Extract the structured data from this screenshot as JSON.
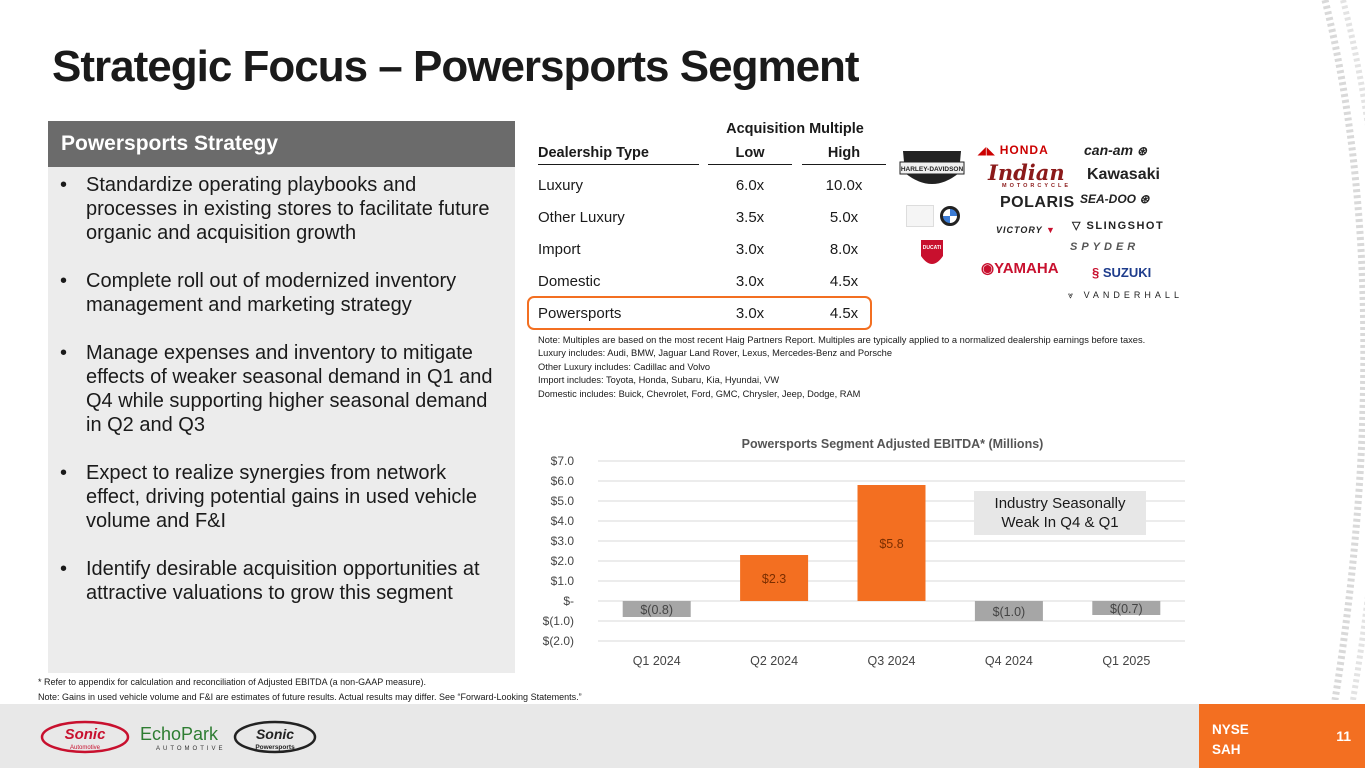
{
  "title": "Strategic Focus – Powersports Segment",
  "strategy": {
    "heading": "Powersports Strategy",
    "bullets": [
      "Standardize operating playbooks and processes in existing stores to facilitate future organic and acquisition growth",
      "Complete roll out of modernized inventory management and marketing strategy",
      "Manage expenses and inventory to mitigate effects of weaker seasonal demand in Q1 and Q4 while supporting higher seasonal demand in Q2 and Q3",
      "Expect to realize synergies from network effect, driving potential gains in used vehicle volume and F&I",
      "Identify desirable acquisition opportunities at attractive valuations to grow this segment"
    ]
  },
  "multiples": {
    "super_header": "Acquisition Multiple",
    "headers": {
      "type": "Dealership Type",
      "low": "Low",
      "high": "High"
    },
    "rows": [
      {
        "type": "Luxury",
        "low": "6.0x",
        "high": "10.0x"
      },
      {
        "type": "Other Luxury",
        "low": "3.5x",
        "high": "5.0x"
      },
      {
        "type": "Import",
        "low": "3.0x",
        "high": "8.0x"
      },
      {
        "type": "Domestic",
        "low": "3.0x",
        "high": "4.5x"
      },
      {
        "type": "Powersports",
        "low": "3.0x",
        "high": "4.5x"
      }
    ],
    "highlight_color": "#f36f21"
  },
  "brands": {
    "harley": "HARLEY-DAVIDSON",
    "honda": "HONDA",
    "indian": "Indian",
    "indian_sub": "MOTORCYCLE",
    "polaris": "POLARIS",
    "victory": "VICTORY",
    "yamaha": "YAMAHA",
    "canam": "can-am",
    "kawasaki": "Kawasaki",
    "seadoo": "SEA-DOO",
    "slingshot": "SLINGSHOT",
    "spyder": "SPYDER",
    "suzuki": "SUZUKI",
    "vanderhall": "VANDERHALL",
    "ducati": "DUCATI"
  },
  "notes": [
    "Note: Multiples are based on the most recent Haig Partners Report. Multiples are typically applied to a normalized dealership earnings before taxes.",
    "Luxury includes: Audi, BMW, Jaguar Land Rover, Lexus, Mercedes-Benz and Porsche",
    "Other Luxury includes: Cadillac and Volvo",
    "Import includes: Toyota, Honda, Subaru, Kia, Hyundai, VW",
    "Domestic includes: Buick, Chevrolet, Ford, GMC, Chrysler, Jeep, Dodge, RAM"
  ],
  "chart_data": {
    "type": "bar",
    "title": "Powersports Segment Adjusted EBITDA* (Millions)",
    "categories": [
      "Q1 2024",
      "Q2 2024",
      "Q3 2024",
      "Q4 2024",
      "Q1 2025"
    ],
    "values": [
      -0.8,
      2.3,
      5.8,
      -1.0,
      -0.7
    ],
    "data_labels": [
      "$(0.8)",
      "$2.3",
      "$5.8",
      "$(1.0)",
      "$(0.7)"
    ],
    "ylim": [
      -2.0,
      7.0
    ],
    "y_ticks": [
      7.0,
      6.0,
      5.0,
      4.0,
      3.0,
      2.0,
      1.0,
      0.0,
      -1.0,
      -2.0
    ],
    "y_tick_labels": [
      "$7.0",
      "$6.0",
      "$5.0",
      "$4.0",
      "$3.0",
      "$2.0",
      "$1.0",
      "$-",
      "$(1.0)",
      "$(2.0)"
    ],
    "grid": true,
    "positive_color": "#f36f21",
    "negative_color": "#a6a6a6",
    "annotation": "Industry Seasonally Weak In Q4 & Q1"
  },
  "footnotes": [
    "* Refer to appendix for calculation and reconciliation of Adjusted EBITDA (a non-GAAP measure).",
    "Note: Gains in used vehicle volume and F&I are estimates of future results. Actual results may differ. See “Forward-Looking Statements.”"
  ],
  "footer": {
    "logos": {
      "sonic": "Sonic",
      "sonic_sub": "Automotive",
      "echopark": "EchoPark",
      "echopark_sub": "AUTOMOTIVE",
      "sonic_ps": "Sonic",
      "sonic_ps_sub": "Powersports"
    },
    "ticker": "NYSE SAH",
    "page": "11",
    "accent": "#f36f21"
  }
}
